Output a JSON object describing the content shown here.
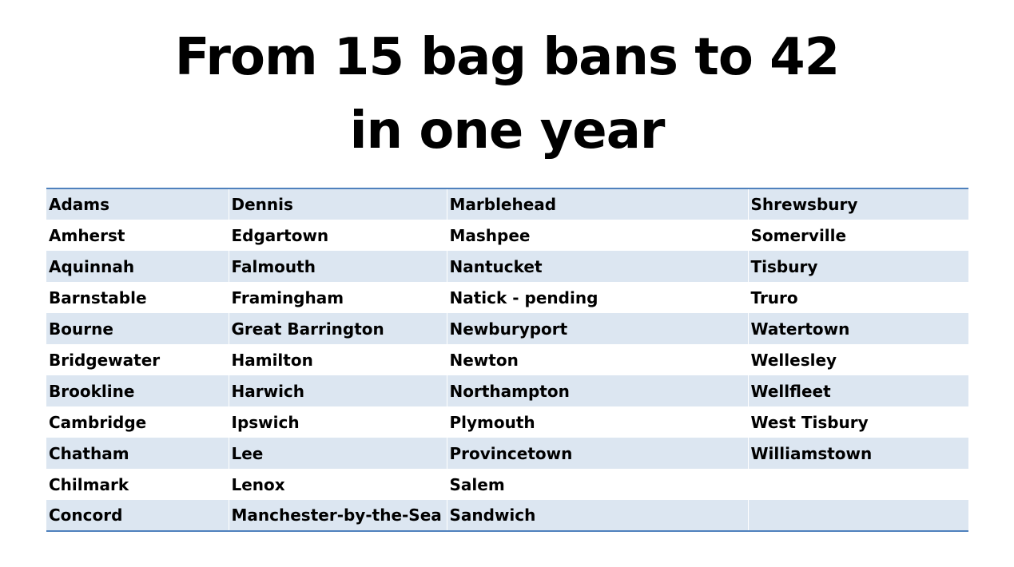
{
  "title": {
    "line1": "From 15 bag bans to 42",
    "line2": "in one year"
  },
  "table": {
    "rows": [
      [
        "Adams",
        "Dennis",
        "Marblehead",
        "Shrewsbury"
      ],
      [
        "Amherst",
        "Edgartown",
        "Mashpee",
        "Somerville"
      ],
      [
        "Aquinnah",
        "Falmouth",
        "Nantucket",
        "Tisbury"
      ],
      [
        "Barnstable",
        "Framingham",
        "Natick - pending",
        "Truro"
      ],
      [
        "Bourne",
        "Great Barrington",
        "Newburyport",
        "Watertown"
      ],
      [
        "Bridgewater",
        "Hamilton",
        "Newton",
        "Wellesley"
      ],
      [
        "Brookline",
        "Harwich",
        "Northampton",
        "Wellfleet"
      ],
      [
        "Cambridge",
        "Ipswich",
        "Plymouth",
        "West Tisbury"
      ],
      [
        "Chatham",
        "Lee",
        "Provincetown",
        "Williamstown"
      ],
      [
        "Chilmark",
        "Lenox",
        "Salem",
        ""
      ],
      [
        "Concord",
        "Manchester-by-the-Sea",
        "Sandwich",
        ""
      ]
    ]
  },
  "colors": {
    "band": "#dce6f1",
    "rule": "#4f81bd"
  }
}
